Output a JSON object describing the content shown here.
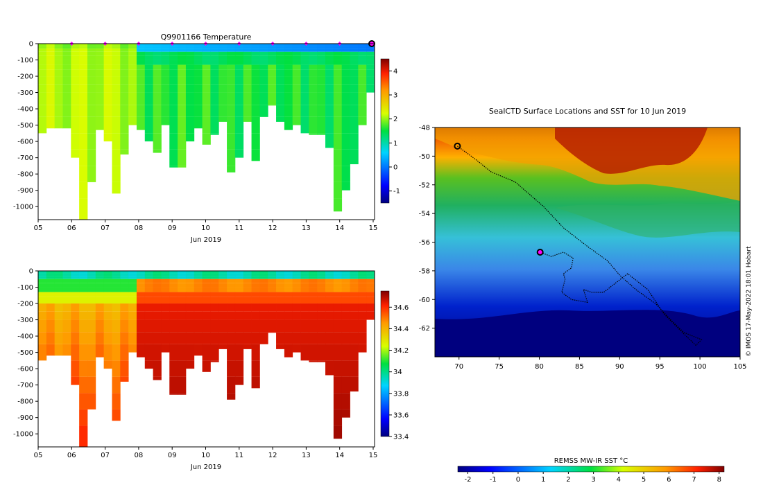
{
  "chart_data": [
    {
      "type": "heatmap",
      "name": "temperature-section",
      "title": "Q9901166  Temperature",
      "xlabel": "Jun 2019",
      "x_tick_labels": [
        "05",
        "06",
        "07",
        "08",
        "09",
        "10",
        "11",
        "12",
        "13",
        "14",
        "15"
      ],
      "y_tick_labels": [
        "0",
        "-100",
        "-200",
        "-300",
        "-400",
        "-500",
        "-600",
        "-700",
        "-800",
        "-900",
        "-1000"
      ],
      "ylim": [
        -1080,
        0
      ],
      "colorbar": {
        "ticks": [
          "-1",
          "0",
          "1",
          "2",
          "3",
          "4"
        ],
        "range": [
          -1.5,
          4.5
        ]
      },
      "surface_markers": [
        "06",
        "07",
        "08",
        "09",
        "10",
        "11",
        "12",
        "13",
        "14"
      ],
      "profile_depth_bottom_m": [
        550,
        520,
        520,
        520,
        700,
        1080,
        850,
        530,
        600,
        920,
        680,
        500,
        530,
        600,
        670,
        500,
        760,
        760,
        600,
        520,
        620,
        560,
        480,
        790,
        700,
        480,
        720,
        450,
        380,
        480,
        530,
        500,
        550,
        560,
        560,
        640,
        1030,
        900,
        740,
        500,
        300
      ]
    },
    {
      "type": "heatmap",
      "name": "salinity-section",
      "xlabel": "Jun 2019",
      "x_tick_labels": [
        "05",
        "06",
        "07",
        "08",
        "09",
        "10",
        "11",
        "12",
        "13",
        "14",
        "15"
      ],
      "y_tick_labels": [
        "0",
        "-100",
        "-200",
        "-300",
        "-400",
        "-500",
        "-600",
        "-700",
        "-800",
        "-900",
        "-1000"
      ],
      "ylim": [
        -1080,
        0
      ],
      "colorbar": {
        "ticks": [
          "33.4",
          "33.6",
          "33.8",
          "34",
          "34.2",
          "34.4",
          "34.6"
        ],
        "range": [
          33.4,
          34.75
        ]
      }
    },
    {
      "type": "heatmap",
      "name": "sst-map",
      "title": "SealCTD Surface Locations and SST for 10 Jun 2019",
      "x_tick_labels": [
        "70",
        "75",
        "80",
        "85",
        "90",
        "95",
        "100",
        "105"
      ],
      "y_tick_labels": [
        "-48",
        "-50",
        "-52",
        "-54",
        "-56",
        "-58",
        "-60",
        "-62"
      ],
      "xlim": [
        67,
        105
      ],
      "ylim": [
        -64,
        -48
      ],
      "colorbar_label": "REMSS MW-IR SST °C",
      "colorbar": {
        "ticks": [
          "-2",
          "-1",
          "0",
          "1",
          "2",
          "3",
          "4",
          "5",
          "6",
          "7",
          "8"
        ],
        "range": [
          -2.4,
          8.2
        ]
      },
      "credit": "© IMOS 17-May-2022 18:01 Hobart",
      "track": [
        [
          69.8,
          -49.3
        ],
        [
          72,
          -50.2
        ],
        [
          74,
          -51.1
        ],
        [
          77,
          -51.8
        ],
        [
          80.5,
          -53.5
        ],
        [
          83,
          -55
        ],
        [
          86,
          -56.3
        ],
        [
          88.5,
          -57.3
        ],
        [
          90,
          -58.3
        ],
        [
          92,
          -59.3
        ],
        [
          94.5,
          -60.3
        ],
        [
          96.5,
          -61.5
        ],
        [
          98,
          -62.3
        ],
        [
          100.2,
          -62.8
        ],
        [
          99.5,
          -63.2
        ],
        [
          98,
          -62.4
        ],
        [
          95.5,
          -61
        ],
        [
          93.5,
          -59.3
        ],
        [
          91,
          -58.2
        ],
        [
          88,
          -59.5
        ],
        [
          86.5,
          -59.5
        ],
        [
          85.5,
          -59.3
        ],
        [
          86,
          -60.2
        ],
        [
          84,
          -60
        ],
        [
          82.8,
          -59.5
        ],
        [
          83.2,
          -58.6
        ],
        [
          83,
          -58.2
        ],
        [
          84,
          -57.8
        ],
        [
          84.2,
          -57.1
        ],
        [
          83,
          -56.7
        ],
        [
          81.5,
          -57
        ],
        [
          80.1,
          -56.7
        ]
      ]
    }
  ]
}
